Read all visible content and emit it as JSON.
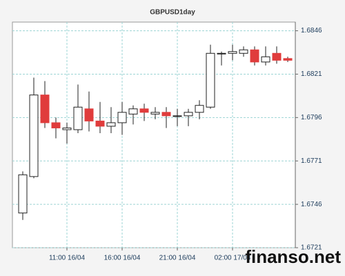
{
  "chart_data": {
    "type": "candlestick",
    "title": "GBPUSD1day",
    "categories": [
      null,
      null,
      null,
      null,
      "11:00 16/04",
      null,
      null,
      null,
      null,
      "16:00 16/04",
      null,
      null,
      null,
      null,
      "21:00 16/04",
      null,
      null,
      null,
      null,
      "02:00 17/04",
      null,
      null,
      null,
      null,
      null
    ],
    "open": [
      1.6741,
      1.6762,
      1.6809,
      1.6793,
      1.6789,
      1.6789,
      1.6801,
      1.6794,
      1.6791,
      1.6793,
      1.6798,
      1.6801,
      1.6798,
      1.6799,
      1.6797,
      1.6797,
      1.6799,
      1.6802,
      1.6833,
      1.6833,
      1.6833,
      1.6835,
      1.6828,
      1.6833,
      1.683
    ],
    "high": [
      1.6765,
      1.6819,
      1.6817,
      1.6796,
      1.6793,
      1.6815,
      1.6811,
      1.6805,
      1.6802,
      1.6805,
      1.6803,
      1.6804,
      1.6802,
      1.6802,
      1.6801,
      1.6801,
      1.6806,
      1.6838,
      1.6834,
      1.6838,
      1.6837,
      1.6837,
      1.6837,
      1.6837,
      1.6831
    ],
    "low": [
      1.6737,
      1.6761,
      1.679,
      1.6784,
      1.6781,
      1.6787,
      1.6788,
      1.6787,
      1.6787,
      1.6786,
      1.6792,
      1.6794,
      1.6795,
      1.679,
      1.6791,
      1.6791,
      1.6795,
      1.6801,
      1.6826,
      1.6829,
      1.6831,
      1.6826,
      1.6826,
      1.6827,
      1.6828
    ],
    "close": [
      1.6763,
      1.6809,
      1.6793,
      1.679,
      1.679,
      1.6802,
      1.6794,
      1.6791,
      1.6793,
      1.6799,
      1.6801,
      1.6799,
      1.6799,
      1.6797,
      1.6797,
      1.6799,
      1.6803,
      1.6833,
      1.6833,
      1.6834,
      1.6835,
      1.6828,
      1.6831,
      1.6829,
      1.6829
    ],
    "up_color": "#ffffff",
    "down_color": "#e03c3c",
    "ylim": [
      1.6721,
      1.6851
    ],
    "yticks": [
      1.6721,
      1.6746,
      1.6771,
      1.6796,
      1.6821,
      1.6846
    ],
    "grid": true,
    "watermark": "finanso.net"
  }
}
